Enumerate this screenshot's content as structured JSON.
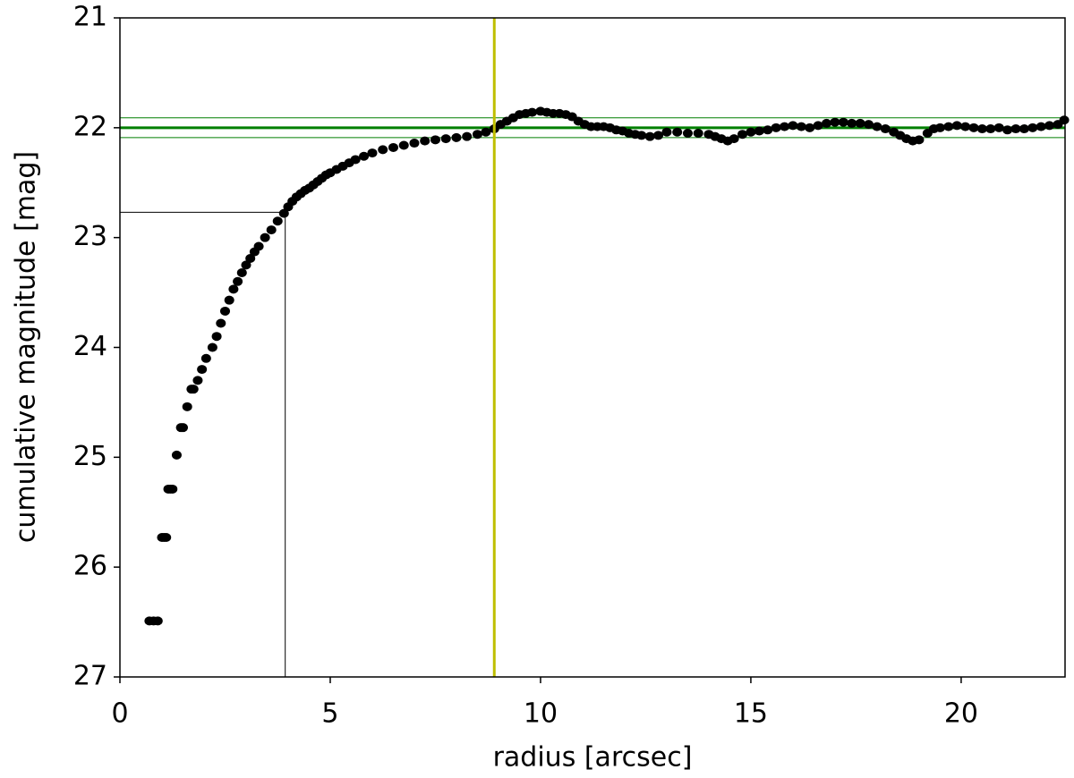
{
  "chart_data": {
    "type": "scatter",
    "xlabel": "radius [arcsec]",
    "ylabel": "cumulative magnitude [mag]",
    "xlim": [
      0,
      22.47
    ],
    "ylim": [
      27,
      21
    ],
    "xticks": [
      0,
      5,
      10,
      15,
      20
    ],
    "yticks": [
      21,
      22,
      23,
      24,
      25,
      26,
      27
    ],
    "color": "#000000",
    "x": [
      0.7,
      0.8,
      0.9,
      1.0,
      1.05,
      1.1,
      1.15,
      1.2,
      1.25,
      1.35,
      1.45,
      1.5,
      1.6,
      1.7,
      1.75,
      1.85,
      1.95,
      2.05,
      2.2,
      2.3,
      2.4,
      2.5,
      2.6,
      2.7,
      2.8,
      2.9,
      3.0,
      3.1,
      3.2,
      3.3,
      3.45,
      3.6,
      3.75,
      3.9,
      4.0,
      4.1,
      4.2,
      4.3,
      4.4,
      4.5,
      4.6,
      4.7,
      4.8,
      4.9,
      5.0,
      5.15,
      5.3,
      5.45,
      5.6,
      5.8,
      6.0,
      6.25,
      6.5,
      6.75,
      7.0,
      7.25,
      7.5,
      7.75,
      8.0,
      8.25,
      8.5,
      8.7,
      8.9,
      9.05,
      9.2,
      9.35,
      9.5,
      9.65,
      9.8,
      10.0,
      10.15,
      10.3,
      10.45,
      10.6,
      10.75,
      10.9,
      11.05,
      11.2,
      11.35,
      11.5,
      11.65,
      11.8,
      11.95,
      12.1,
      12.25,
      12.4,
      12.6,
      12.8,
      13.0,
      13.25,
      13.5,
      13.75,
      14.0,
      14.15,
      14.3,
      14.45,
      14.6,
      14.8,
      15.0,
      15.2,
      15.4,
      15.6,
      15.8,
      16.0,
      16.2,
      16.4,
      16.6,
      16.8,
      17.0,
      17.2,
      17.4,
      17.6,
      17.8,
      18.0,
      18.2,
      18.4,
      18.55,
      18.7,
      18.85,
      19.0,
      19.2,
      19.35,
      19.5,
      19.7,
      19.9,
      20.1,
      20.3,
      20.5,
      20.7,
      20.9,
      21.1,
      21.3,
      21.5,
      21.7,
      21.9,
      22.1,
      22.3,
      22.45
    ],
    "values": [
      26.49,
      26.49,
      26.49,
      25.73,
      25.73,
      25.73,
      25.29,
      25.29,
      25.29,
      24.98,
      24.73,
      24.73,
      24.54,
      24.38,
      24.38,
      24.3,
      24.2,
      24.1,
      24.0,
      23.9,
      23.78,
      23.67,
      23.57,
      23.47,
      23.4,
      23.32,
      23.25,
      23.19,
      23.13,
      23.08,
      23.0,
      22.93,
      22.85,
      22.78,
      22.72,
      22.67,
      22.63,
      22.6,
      22.57,
      22.55,
      22.52,
      22.49,
      22.46,
      22.43,
      22.41,
      22.38,
      22.35,
      22.32,
      22.29,
      22.26,
      22.23,
      22.2,
      22.18,
      22.16,
      22.14,
      22.12,
      22.11,
      22.1,
      22.09,
      22.08,
      22.06,
      22.04,
      22.01,
      21.97,
      21.94,
      21.91,
      21.88,
      21.87,
      21.86,
      21.85,
      21.86,
      21.87,
      21.87,
      21.88,
      21.9,
      21.94,
      21.97,
      21.99,
      21.99,
      21.99,
      22.0,
      22.02,
      22.03,
      22.05,
      22.06,
      22.07,
      22.08,
      22.07,
      22.04,
      22.04,
      22.05,
      22.05,
      22.06,
      22.08,
      22.1,
      22.12,
      22.1,
      22.06,
      22.04,
      22.03,
      22.02,
      22.0,
      21.99,
      21.98,
      21.99,
      22.0,
      21.98,
      21.96,
      21.95,
      21.95,
      21.96,
      21.96,
      21.97,
      21.99,
      22.01,
      22.04,
      22.07,
      22.1,
      22.12,
      22.11,
      22.05,
      22.01,
      22.0,
      21.99,
      21.98,
      21.99,
      22.0,
      22.01,
      22.01,
      22.0,
      22.02,
      22.01,
      22.01,
      22.0,
      21.99,
      21.98,
      21.97,
      21.93
    ],
    "hlines": [
      {
        "value": 22.0,
        "color": "#007f00",
        "linewidth": 3
      },
      {
        "value": 21.91,
        "color": "#007f00",
        "linewidth": 1
      },
      {
        "value": 22.09,
        "color": "#007f00",
        "linewidth": 1
      }
    ],
    "vlines": [
      {
        "value": 8.9,
        "color": "#bfbf00",
        "linewidth": 3
      }
    ],
    "guide": {
      "x": 3.93,
      "y": 22.77,
      "color": "#000000"
    }
  }
}
